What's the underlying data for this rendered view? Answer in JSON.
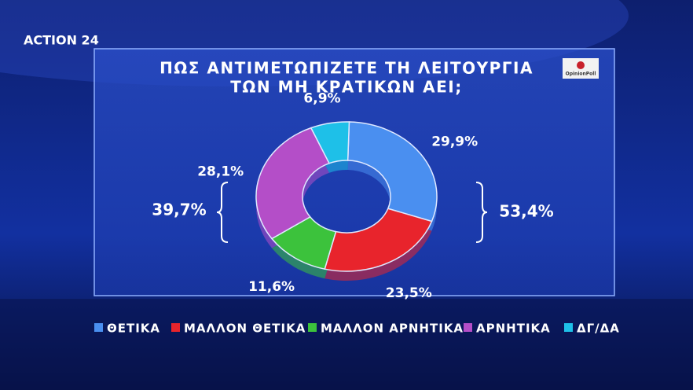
{
  "channel": "ACTION 24",
  "pollster": "OpinionPoll",
  "chart_data": {
    "type": "donut",
    "title": [
      "ΠΩΣ ΑΝΤΙΜΕΤΩΠΙΖΕΤΕ ΤΗ ΛΕΙΤΟΥΡΓΙΑ",
      "ΤΩΝ ΜΗ ΚΡΑΤΙΚΩΝ ΑΕΙ;"
    ],
    "categories": [
      "ΘΕΤΙΚΑ",
      "ΜΑΛΛΟΝ ΘΕΤΙΚΑ",
      "ΜΑΛΛΟΝ ΑΡΝΗΤΙΚΑ",
      "ΑΡΝΗΤΙΚΑ",
      "ΔΓ/ΔΑ"
    ],
    "values": [
      29.9,
      23.5,
      11.6,
      28.1,
      6.9
    ],
    "value_labels": [
      "29,9%",
      "23,5%",
      "11,6%",
      "28,1%",
      "6,9%"
    ],
    "colors": [
      "#4a8ff0",
      "#e8242c",
      "#3cc23c",
      "#b44ec8",
      "#1ec0e8"
    ],
    "groups": [
      {
        "value": 53.4,
        "label": "53,4%"
      },
      {
        "value": 39.7,
        "label": "39,7%"
      }
    ]
  }
}
